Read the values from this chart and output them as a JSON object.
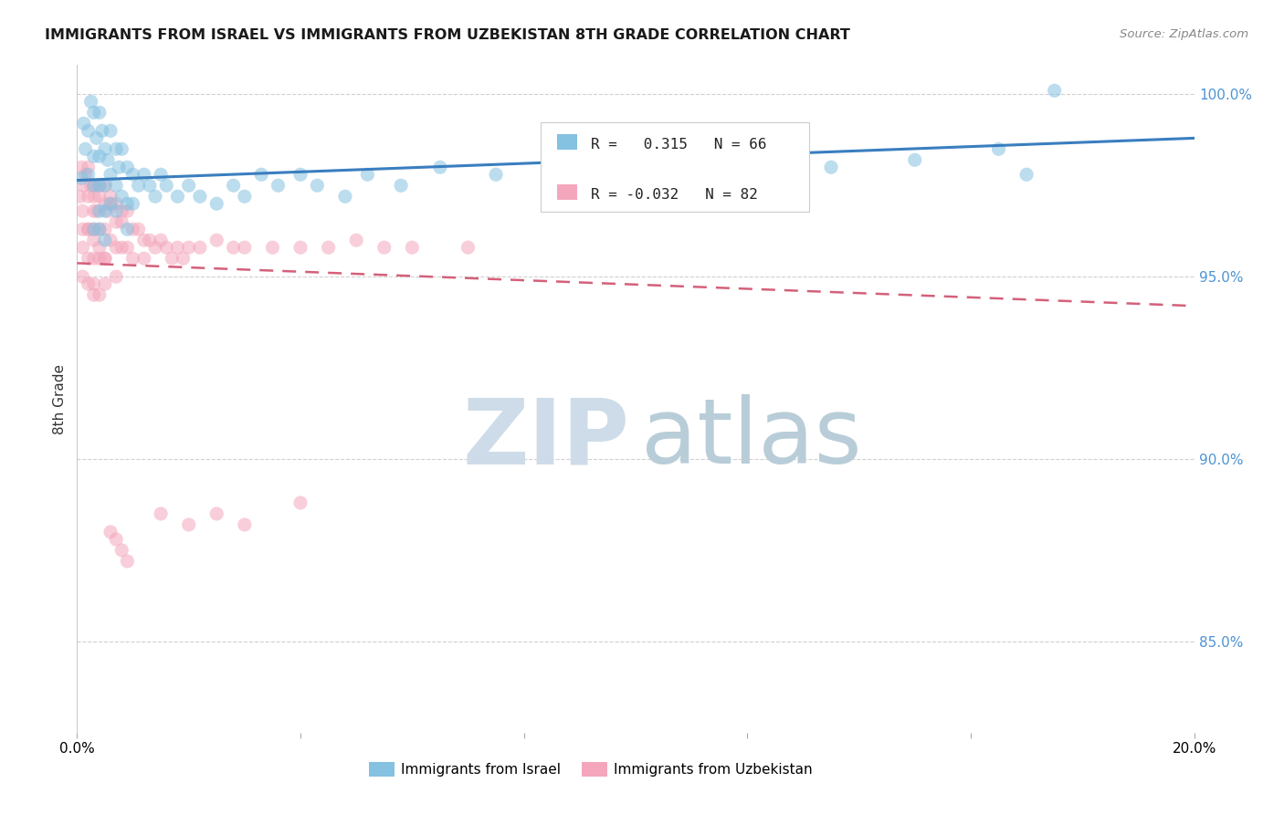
{
  "title": "IMMIGRANTS FROM ISRAEL VS IMMIGRANTS FROM UZBEKISTAN 8TH GRADE CORRELATION CHART",
  "source": "Source: ZipAtlas.com",
  "ylabel": "8th Grade",
  "ylabel_right_labels": [
    "100.0%",
    "95.0%",
    "90.0%",
    "85.0%"
  ],
  "ylabel_right_values": [
    1.0,
    0.95,
    0.9,
    0.85
  ],
  "xlim": [
    0.0,
    0.2
  ],
  "ylim": [
    0.825,
    1.008
  ],
  "israel_R": 0.315,
  "israel_N": 66,
  "uzbekistan_R": -0.032,
  "uzbekistan_N": 82,
  "israel_color": "#85c1e0",
  "uzbekistan_color": "#f4a7bc",
  "israel_line_color": "#3a7ebf",
  "uzbekistan_line_color": "#d4607a",
  "legend_label_israel": "Immigrants from Israel",
  "legend_label_uzbekistan": "Immigrants from Uzbekistan",
  "israel_x": [
    0.0008,
    0.0012,
    0.0015,
    0.002,
    0.002,
    0.0025,
    0.003,
    0.003,
    0.003,
    0.0035,
    0.004,
    0.004,
    0.004,
    0.004,
    0.0045,
    0.005,
    0.005,
    0.005,
    0.0055,
    0.006,
    0.006,
    0.006,
    0.007,
    0.007,
    0.007,
    0.0075,
    0.008,
    0.008,
    0.009,
    0.009,
    0.009,
    0.01,
    0.01,
    0.011,
    0.012,
    0.013,
    0.014,
    0.015,
    0.016,
    0.018,
    0.02,
    0.022,
    0.025,
    0.028,
    0.03,
    0.033,
    0.036,
    0.04,
    0.043,
    0.048,
    0.052,
    0.058,
    0.065,
    0.075,
    0.085,
    0.095,
    0.105,
    0.12,
    0.135,
    0.15,
    0.165,
    0.175,
    0.003,
    0.004,
    0.005,
    0.17
  ],
  "israel_y": [
    0.977,
    0.992,
    0.985,
    0.99,
    0.978,
    0.998,
    0.995,
    0.983,
    0.975,
    0.988,
    0.995,
    0.983,
    0.975,
    0.968,
    0.99,
    0.985,
    0.975,
    0.968,
    0.982,
    0.99,
    0.978,
    0.97,
    0.985,
    0.975,
    0.968,
    0.98,
    0.985,
    0.972,
    0.98,
    0.97,
    0.963,
    0.978,
    0.97,
    0.975,
    0.978,
    0.975,
    0.972,
    0.978,
    0.975,
    0.972,
    0.975,
    0.972,
    0.97,
    0.975,
    0.972,
    0.978,
    0.975,
    0.978,
    0.975,
    0.972,
    0.978,
    0.975,
    0.98,
    0.978,
    0.982,
    0.978,
    0.982,
    0.985,
    0.98,
    0.982,
    0.985,
    1.001,
    0.963,
    0.963,
    0.96,
    0.978
  ],
  "uzbekistan_x": [
    0.0005,
    0.001,
    0.001,
    0.0015,
    0.002,
    0.002,
    0.002,
    0.0025,
    0.003,
    0.003,
    0.003,
    0.003,
    0.0035,
    0.004,
    0.004,
    0.004,
    0.005,
    0.005,
    0.005,
    0.005,
    0.0055,
    0.006,
    0.006,
    0.007,
    0.007,
    0.007,
    0.008,
    0.008,
    0.009,
    0.009,
    0.01,
    0.01,
    0.011,
    0.012,
    0.012,
    0.013,
    0.014,
    0.015,
    0.016,
    0.017,
    0.018,
    0.019,
    0.02,
    0.022,
    0.025,
    0.028,
    0.03,
    0.035,
    0.04,
    0.045,
    0.05,
    0.055,
    0.06,
    0.0008,
    0.0012,
    0.002,
    0.003,
    0.003,
    0.004,
    0.005,
    0.006,
    0.007,
    0.008,
    0.001,
    0.002,
    0.003,
    0.004,
    0.005,
    0.001,
    0.002,
    0.003,
    0.004,
    0.03,
    0.04,
    0.015,
    0.02,
    0.025,
    0.006,
    0.007,
    0.008,
    0.009,
    0.07
  ],
  "uzbekistan_y": [
    0.972,
    0.968,
    0.958,
    0.978,
    0.972,
    0.963,
    0.955,
    0.975,
    0.972,
    0.963,
    0.955,
    0.948,
    0.968,
    0.972,
    0.963,
    0.955,
    0.97,
    0.963,
    0.955,
    0.948,
    0.968,
    0.97,
    0.96,
    0.965,
    0.958,
    0.95,
    0.965,
    0.958,
    0.968,
    0.958,
    0.963,
    0.955,
    0.963,
    0.96,
    0.955,
    0.96,
    0.958,
    0.96,
    0.958,
    0.955,
    0.958,
    0.955,
    0.958,
    0.958,
    0.96,
    0.958,
    0.958,
    0.958,
    0.958,
    0.958,
    0.96,
    0.958,
    0.958,
    0.98,
    0.975,
    0.98,
    0.975,
    0.968,
    0.975,
    0.975,
    0.972,
    0.97,
    0.968,
    0.963,
    0.963,
    0.96,
    0.958,
    0.955,
    0.95,
    0.948,
    0.945,
    0.945,
    0.882,
    0.888,
    0.885,
    0.882,
    0.885,
    0.88,
    0.878,
    0.875,
    0.872,
    0.958
  ]
}
